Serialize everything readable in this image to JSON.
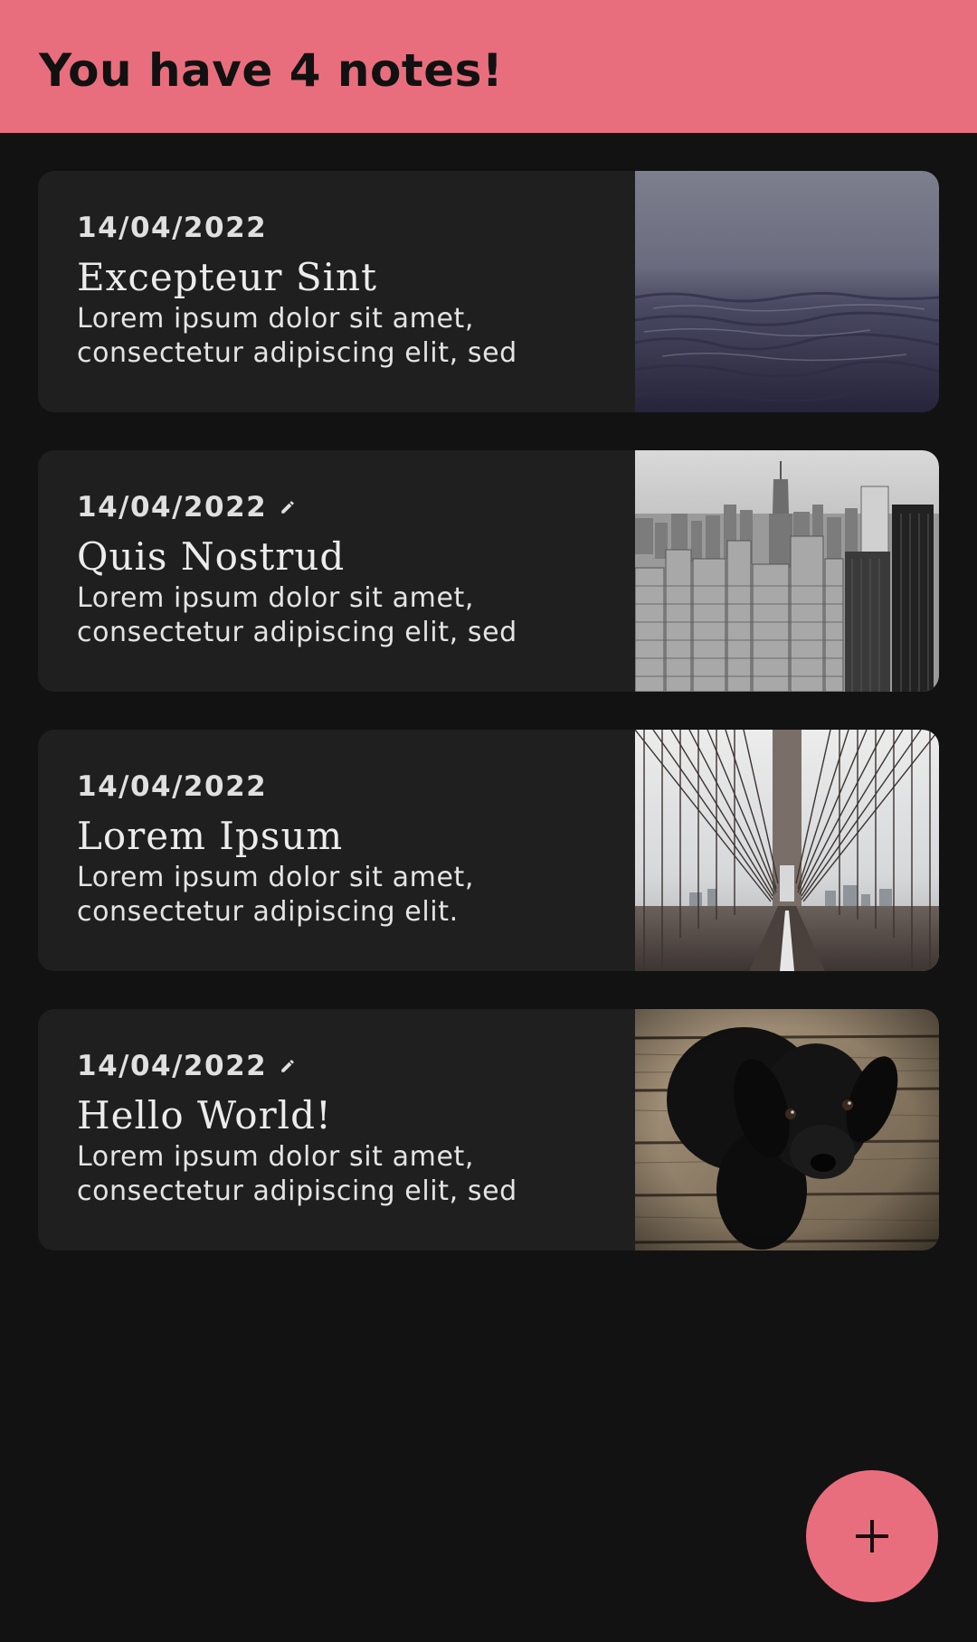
{
  "header": {
    "title": "You have 4 notes!",
    "background_color": "#e96e7d"
  },
  "notes": [
    {
      "date": "14/04/2022",
      "edited": false,
      "title": "Excepteur Sint",
      "body": "Lorem ipsum dolor sit amet, consectetur adipiscing elit, sed",
      "image": "foggy-sea"
    },
    {
      "date": "14/04/2022",
      "edited": true,
      "title": "Quis Nostrud",
      "body": "Lorem ipsum dolor sit amet, consectetur adipiscing elit, sed",
      "image": "city-skyline"
    },
    {
      "date": "14/04/2022",
      "edited": false,
      "title": "Lorem Ipsum",
      "body": "Lorem ipsum dolor sit amet, consectetur adipiscing elit.",
      "image": "suspension-bridge"
    },
    {
      "date": "14/04/2022",
      "edited": true,
      "title": "Hello World!",
      "body": "Lorem ipsum dolor sit amet, consectetur adipiscing elit, sed",
      "image": "black-puppy"
    }
  ],
  "fab": {
    "icon": "plus-icon",
    "color": "#e96e7d"
  },
  "colors": {
    "background": "#121212",
    "card": "#1f1f1f"
  }
}
